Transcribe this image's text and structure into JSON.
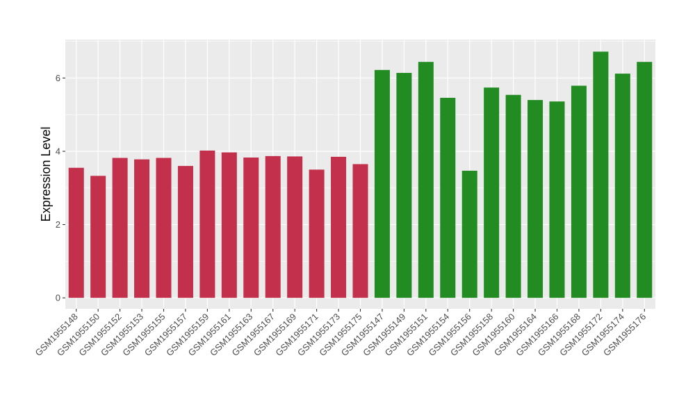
{
  "chart_data": {
    "type": "bar",
    "title": "",
    "xlabel": "",
    "ylabel": "Expression Level",
    "ylim": [
      -0.3,
      7.05
    ],
    "yticks": [
      0,
      2,
      4,
      6
    ],
    "grid": true,
    "legend": "none",
    "categories": [
      "GSM1955148",
      "GSM1955150",
      "GSM1955152",
      "GSM1955153",
      "GSM1955155",
      "GSM1955157",
      "GSM1955159",
      "GSM1955161",
      "GSM1955163",
      "GSM1955167",
      "GSM1955169",
      "GSM1955171",
      "GSM1955173",
      "GSM1955175",
      "GSM1955147",
      "GSM1955149",
      "GSM1955151",
      "GSM1955154",
      "GSM1955156",
      "GSM1955158",
      "GSM1955160",
      "GSM1955164",
      "GSM1955166",
      "GSM1955168",
      "GSM1955172",
      "GSM1955174",
      "GSM1955176"
    ],
    "values": [
      3.55,
      3.33,
      3.82,
      3.78,
      3.82,
      3.6,
      4.02,
      3.97,
      3.83,
      3.87,
      3.86,
      3.5,
      3.85,
      3.65,
      6.22,
      6.14,
      6.44,
      5.46,
      3.47,
      5.74,
      5.54,
      5.4,
      5.36,
      5.79,
      6.72,
      6.12,
      6.44
    ],
    "groups": [
      "red",
      "red",
      "red",
      "red",
      "red",
      "red",
      "red",
      "red",
      "red",
      "red",
      "red",
      "red",
      "red",
      "red",
      "green",
      "green",
      "green",
      "green",
      "green",
      "green",
      "green",
      "green",
      "green",
      "green",
      "green",
      "green",
      "green"
    ],
    "colors": {
      "red": "#C3304B",
      "green": "#228B22",
      "panel": "#EBEBEB",
      "grid": "#FFFFFF"
    }
  }
}
